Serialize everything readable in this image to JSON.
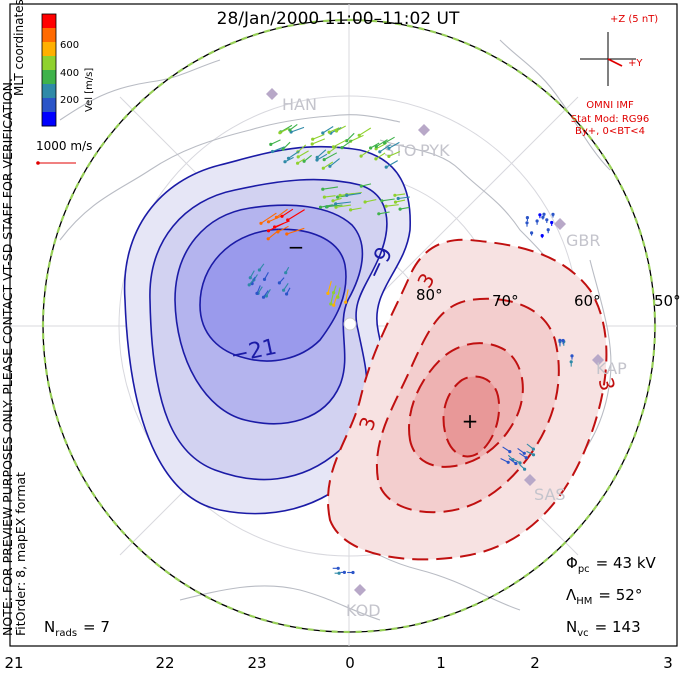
{
  "title": "28/Jan/2000  11:00–11:02  UT",
  "note_line1": "NOTE: FOR PREVIEW PURPOSES ONLY. PLEASE CONTACT VT-SD STAFF FOR VERIFICATION.",
  "note_line2": "FitOrder: 8,  mapEX format",
  "coord_label": "MLT coordinates",
  "velocity_scale": {
    "title": "Vel [m/s]",
    "ticks": [
      "600",
      "400",
      "200"
    ],
    "colors": [
      "#ff0000",
      "#ff6a00",
      "#ffb000",
      "#8fd12e",
      "#3fb24a",
      "#2f8aa8",
      "#2b55c8",
      "#0000ff"
    ]
  },
  "ref_vector_label": "1000 m/s",
  "imf": {
    "scale_label": "+Z (5 nT)",
    "y_label": "+Y",
    "source": "OMNI IMF",
    "stat_mod": "Stat Mod: RG96",
    "condition": "By+,  0<BT<4"
  },
  "stats": {
    "phi_pc_symbol": "Φ",
    "phi_pc_sub": "pc",
    "phi_pc_value": "= 43 kV",
    "lambda_hm_symbol": "Λ",
    "lambda_hm_sub": "HM",
    "lambda_hm_value": "= 52°",
    "n_vc_symbol": "N",
    "n_vc_sub": "vc",
    "n_vc_value": "= 143",
    "n_rads_symbol": "N",
    "n_rads_sub": "rads",
    "n_rads_value": "= 7"
  },
  "mlt_ticks": [
    "21",
    "22",
    "23",
    "0",
    "1",
    "2",
    "3"
  ],
  "lat_labels": [
    "80°",
    "70°",
    "60°",
    "50°"
  ],
  "contour_labels": {
    "neg_outer": "−9",
    "neg_inner": "−21",
    "pos_outer": "3",
    "pos_left": "3",
    "pos_top": "3"
  },
  "min_marker": "−",
  "max_marker": "+",
  "stations": [
    "HAN",
    "STO",
    "PYK",
    "GBR",
    "KAP",
    "SAS",
    "KOD"
  ],
  "colors": {
    "neg_fill_outer": "#e6e6f6",
    "neg_fill_mid": "#d2d2f1",
    "neg_fill_inner": "#b4b4ee",
    "neg_fill_core": "#9a9aec",
    "neg_line": "#1b1ba6",
    "pos_fill_outer": "#f7e2e2",
    "pos_fill_mid": "#f3cece",
    "pos_fill_inner": "#eeb2b2",
    "pos_fill_core": "#e89898",
    "pos_line": "#c01010",
    "boundary_dash": "#98d058",
    "land": "#c7cad0",
    "imf_red": "#e00000"
  }
}
